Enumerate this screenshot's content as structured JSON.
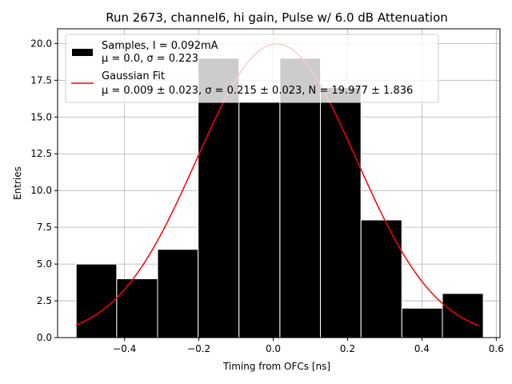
{
  "chart_data": {
    "type": "bar",
    "title": "Run 2673, channel6, hi gain, Pulse w/ 6.0 dB Attenuation",
    "xlabel": "Timing from OFCs [ns]",
    "ylabel": "Entries",
    "xlim": [
      -0.58,
      0.61
    ],
    "ylim": [
      0,
      21
    ],
    "xticks": [
      -0.4,
      -0.2,
      0.0,
      0.2,
      0.4,
      0.6
    ],
    "xtick_labels": [
      "−0.4",
      "−0.2",
      "0.0",
      "0.2",
      "0.4",
      "0.6"
    ],
    "yticks": [
      0,
      2.5,
      5,
      7.5,
      10,
      12.5,
      15,
      17.5,
      20
    ],
    "ytick_labels": [
      "0.0",
      "2.5",
      "5.0",
      "7.5",
      "10.0",
      "12.5",
      "15.0",
      "17.5",
      "20.0"
    ],
    "grid": true,
    "legend_position": "top-left",
    "histogram": {
      "bin_edges": [
        -0.53,
        -0.421,
        -0.311,
        -0.202,
        -0.092,
        0.018,
        0.127,
        0.236,
        0.346,
        0.455,
        0.565
      ],
      "counts": [
        5,
        4,
        6,
        19,
        16,
        19,
        17,
        8,
        2,
        3
      ],
      "color": "#000000",
      "edge_color": "#ffffff"
    },
    "fit": {
      "mu": 0.009,
      "sigma": 0.215,
      "N": 19.977,
      "x_range": [
        -0.53,
        0.555
      ],
      "color": "#ff0000"
    },
    "legend": [
      {
        "label_line1": "Samples, I = 0.092mA",
        "label_line2": "μ = 0.0, σ = 0.223",
        "swatch": "box",
        "color": "#000000"
      },
      {
        "label_line1": "Gaussian Fit",
        "label_line2": "μ = 0.009 ± 0.023, σ = 0.215 ± 0.023, N = 19.977 ± 1.836",
        "swatch": "line",
        "color": "#ff0000"
      }
    ]
  }
}
